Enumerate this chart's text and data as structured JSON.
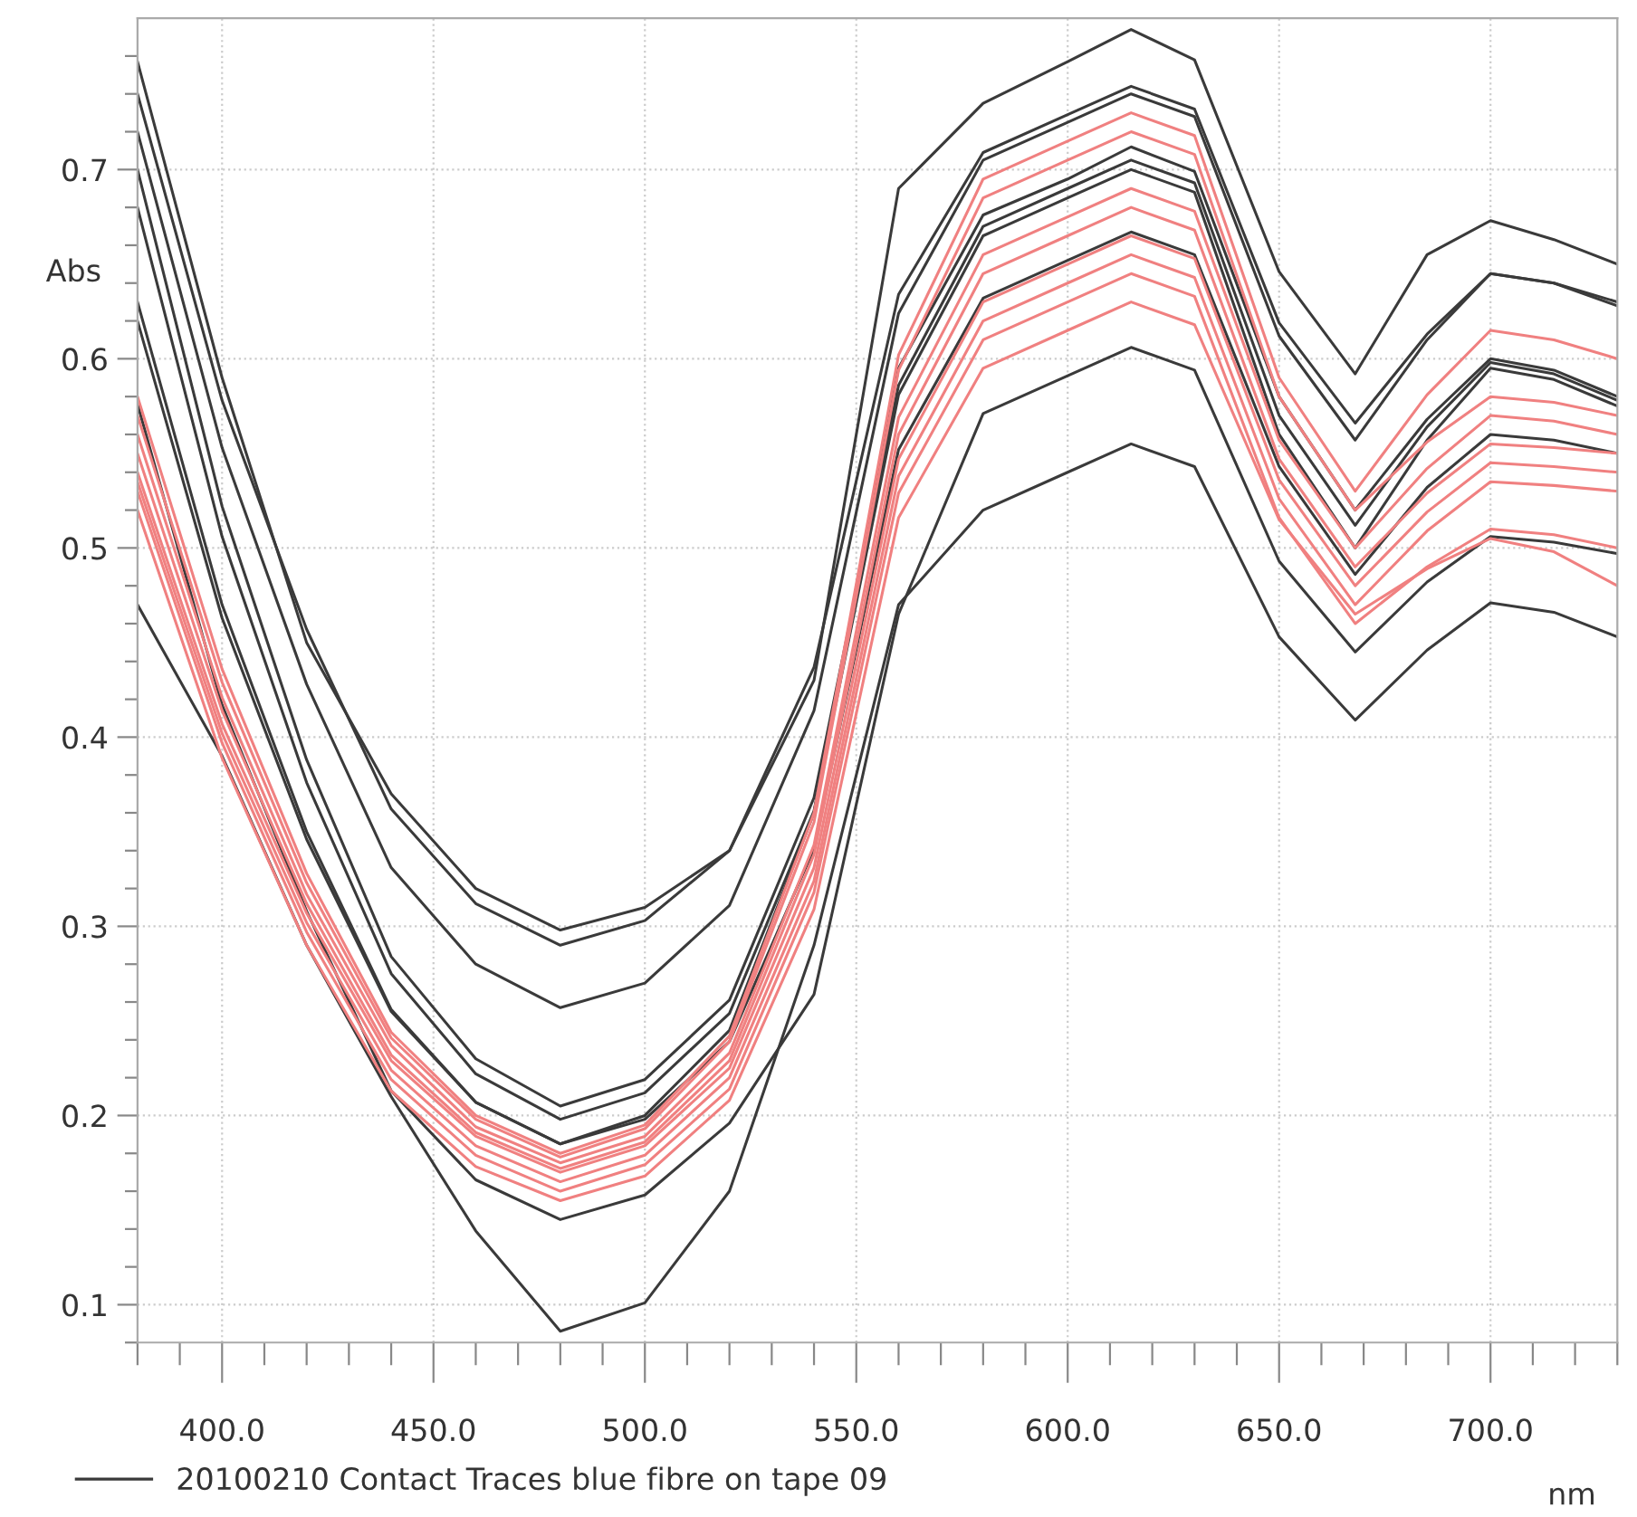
{
  "chart_data": {
    "type": "line",
    "xlabel": "nm",
    "ylabel": "Abs",
    "legend": "bottom left",
    "grid": true,
    "line_style": "solid",
    "marker": "none",
    "x": [
      380,
      400,
      420,
      440,
      460,
      480,
      500,
      520,
      540,
      560,
      580,
      600,
      615,
      630,
      650,
      668,
      685,
      700,
      715,
      730
    ],
    "xlim": [
      380,
      730
    ],
    "ylim": [
      0.08,
      0.78
    ],
    "xticks": [
      {
        "value": 380,
        "label": null
      },
      {
        "value": 390,
        "label": null
      },
      {
        "value": 400,
        "label": "400.0"
      },
      {
        "value": 410,
        "label": null
      },
      {
        "value": 420,
        "label": null
      },
      {
        "value": 430,
        "label": null
      },
      {
        "value": 440,
        "label": null
      },
      {
        "value": 450,
        "label": "450.0"
      },
      {
        "value": 460,
        "label": null
      },
      {
        "value": 470,
        "label": null
      },
      {
        "value": 480,
        "label": null
      },
      {
        "value": 490,
        "label": null
      },
      {
        "value": 500,
        "label": "500.0"
      },
      {
        "value": 510,
        "label": null
      },
      {
        "value": 520,
        "label": null
      },
      {
        "value": 530,
        "label": null
      },
      {
        "value": 540,
        "label": null
      },
      {
        "value": 550,
        "label": "550.0"
      },
      {
        "value": 560,
        "label": null
      },
      {
        "value": 570,
        "label": null
      },
      {
        "value": 580,
        "label": null
      },
      {
        "value": 590,
        "label": null
      },
      {
        "value": 600,
        "label": "600.0"
      },
      {
        "value": 610,
        "label": null
      },
      {
        "value": 620,
        "label": null
      },
      {
        "value": 630,
        "label": null
      },
      {
        "value": 640,
        "label": null
      },
      {
        "value": 650,
        "label": "650.0"
      },
      {
        "value": 660,
        "label": null
      },
      {
        "value": 670,
        "label": null
      },
      {
        "value": 680,
        "label": null
      },
      {
        "value": 690,
        "label": null
      },
      {
        "value": 700,
        "label": "700.0"
      },
      {
        "value": 710,
        "label": null
      },
      {
        "value": 720,
        "label": null
      },
      {
        "value": 730,
        "label": null
      }
    ],
    "yticks": [
      {
        "value": 0.08,
        "label": null
      },
      {
        "value": 0.1,
        "label": "0.1"
      },
      {
        "value": 0.12,
        "label": null
      },
      {
        "value": 0.14,
        "label": null
      },
      {
        "value": 0.16,
        "label": null
      },
      {
        "value": 0.18,
        "label": null
      },
      {
        "value": 0.2,
        "label": "0.2"
      },
      {
        "value": 0.22,
        "label": null
      },
      {
        "value": 0.24,
        "label": null
      },
      {
        "value": 0.26,
        "label": null
      },
      {
        "value": 0.28,
        "label": null
      },
      {
        "value": 0.3,
        "label": "0.3"
      },
      {
        "value": 0.32,
        "label": null
      },
      {
        "value": 0.34,
        "label": null
      },
      {
        "value": 0.36,
        "label": null
      },
      {
        "value": 0.38,
        "label": null
      },
      {
        "value": 0.4,
        "label": "0.4"
      },
      {
        "value": 0.42,
        "label": null
      },
      {
        "value": 0.44,
        "label": null
      },
      {
        "value": 0.46,
        "label": null
      },
      {
        "value": 0.48,
        "label": null
      },
      {
        "value": 0.5,
        "label": "0.5"
      },
      {
        "value": 0.52,
        "label": null
      },
      {
        "value": 0.54,
        "label": null
      },
      {
        "value": 0.56,
        "label": null
      },
      {
        "value": 0.58,
        "label": null
      },
      {
        "value": 0.6,
        "label": "0.6"
      },
      {
        "value": 0.62,
        "label": null
      },
      {
        "value": 0.64,
        "label": null
      },
      {
        "value": 0.66,
        "label": null
      },
      {
        "value": 0.68,
        "label": null
      },
      {
        "value": 0.7,
        "label": "0.7"
      },
      {
        "value": 0.72,
        "label": null
      },
      {
        "value": 0.74,
        "label": null
      },
      {
        "value": 0.76,
        "label": null
      }
    ],
    "series": [
      {
        "name": "20100210 Contact Traces blue fibre on tape 09",
        "color": "#3a3a3a",
        "values": [
          0.757,
          0.59,
          0.45,
          0.37,
          0.32,
          0.298,
          0.31,
          0.34,
          0.43,
          0.69,
          0.735,
          0.757,
          0.774,
          0.758,
          0.646,
          0.592,
          0.655,
          0.673,
          0.663,
          0.65
        ]
      },
      {
        "color": "#3a3a3a",
        "values": [
          0.74,
          0.578,
          0.457,
          0.362,
          0.312,
          0.29,
          0.303,
          0.34,
          0.437,
          0.634,
          0.709,
          0.729,
          0.744,
          0.732,
          0.619,
          0.566,
          0.613,
          0.645,
          0.64,
          0.63
        ]
      },
      {
        "color": "#3a3a3a",
        "values": [
          0.72,
          0.553,
          0.428,
          0.331,
          0.28,
          0.257,
          0.27,
          0.311,
          0.414,
          0.624,
          0.705,
          0.725,
          0.74,
          0.728,
          0.612,
          0.557,
          0.61,
          0.645,
          0.64,
          0.628
        ]
      },
      {
        "color": "#3a3a3a",
        "values": [
          0.7,
          0.522,
          0.388,
          0.284,
          0.23,
          0.205,
          0.219,
          0.261,
          0.368,
          0.586,
          0.67,
          0.69,
          0.705,
          0.693,
          0.57,
          0.512,
          0.564,
          0.598,
          0.592,
          0.578
        ]
      },
      {
        "color": "#3a3a3a",
        "values": [
          0.68,
          0.506,
          0.376,
          0.275,
          0.222,
          0.198,
          0.212,
          0.254,
          0.361,
          0.581,
          0.665,
          0.685,
          0.7,
          0.688,
          0.56,
          0.5,
          0.557,
          0.595,
          0.589,
          0.575
        ]
      },
      {
        "color": "#3a3a3a",
        "values": [
          0.63,
          0.47,
          0.35,
          0.256,
          0.207,
          0.185,
          0.198,
          0.239,
          0.341,
          0.552,
          0.632,
          0.652,
          0.667,
          0.655,
          0.543,
          0.486,
          0.532,
          0.56,
          0.557,
          0.55
        ]
      },
      {
        "color": "#3a3a3a",
        "values": [
          0.62,
          0.463,
          0.346,
          0.255,
          0.207,
          0.185,
          0.2,
          0.245,
          0.36,
          0.595,
          0.676,
          0.695,
          0.712,
          0.699,
          0.58,
          0.52,
          0.568,
          0.6,
          0.594,
          0.58
        ]
      },
      {
        "color": "#3a3a3a",
        "values": [
          0.576,
          0.417,
          0.308,
          0.213,
          0.166,
          0.145,
          0.158,
          0.196,
          0.264,
          0.465,
          0.571,
          0.591,
          0.606,
          0.594,
          0.493,
          0.445,
          0.482,
          0.506,
          0.503,
          0.497
        ]
      },
      {
        "color": "#3a3a3a",
        "values": [
          0.47,
          0.39,
          0.29,
          0.21,
          0.139,
          0.086,
          0.101,
          0.16,
          0.29,
          0.47,
          0.52,
          0.54,
          0.555,
          0.543,
          0.453,
          0.409,
          0.446,
          0.471,
          0.466,
          0.453
        ]
      },
      {
        "color": "#f08080",
        "values": [
          0.58,
          0.436,
          0.328,
          0.244,
          0.2,
          0.18,
          0.195,
          0.242,
          0.36,
          0.602,
          0.695,
          0.715,
          0.73,
          0.718,
          0.59,
          0.53,
          0.581,
          0.615,
          0.61,
          0.6
        ]
      },
      {
        "color": "#f08080",
        "values": [
          0.57,
          0.429,
          0.323,
          0.241,
          0.198,
          0.178,
          0.193,
          0.239,
          0.355,
          0.594,
          0.685,
          0.705,
          0.72,
          0.708,
          0.58,
          0.52,
          0.556,
          0.58,
          0.577,
          0.57
        ]
      },
      {
        "color": "#f08080",
        "values": [
          0.56,
          0.421,
          0.317,
          0.237,
          0.194,
          0.175,
          0.189,
          0.233,
          0.343,
          0.569,
          0.655,
          0.675,
          0.69,
          0.678,
          0.557,
          0.5,
          0.542,
          0.57,
          0.567,
          0.56
        ]
      },
      {
        "color": "#f08080",
        "values": [
          0.55,
          0.414,
          0.312,
          0.232,
          0.191,
          0.172,
          0.186,
          0.229,
          0.338,
          0.56,
          0.645,
          0.665,
          0.68,
          0.668,
          0.547,
          0.49,
          0.529,
          0.555,
          0.553,
          0.55
        ]
      },
      {
        "color": "#f08080",
        "values": [
          0.54,
          0.407,
          0.307,
          0.229,
          0.189,
          0.17,
          0.184,
          0.225,
          0.331,
          0.547,
          0.63,
          0.65,
          0.665,
          0.653,
          0.536,
          0.48,
          0.519,
          0.545,
          0.543,
          0.54
        ]
      },
      {
        "color": "#f08080",
        "values": [
          0.535,
          0.402,
          0.302,
          0.224,
          0.184,
          0.165,
          0.179,
          0.22,
          0.324,
          0.538,
          0.62,
          0.64,
          0.655,
          0.643,
          0.526,
          0.47,
          0.509,
          0.535,
          0.533,
          0.53
        ]
      },
      {
        "color": "#f08080",
        "values": [
          0.53,
          0.397,
          0.297,
          0.219,
          0.179,
          0.16,
          0.174,
          0.214,
          0.318,
          0.529,
          0.61,
          0.63,
          0.645,
          0.633,
          0.516,
          0.46,
          0.49,
          0.51,
          0.507,
          0.5
        ]
      },
      {
        "color": "#f08080",
        "values": [
          0.52,
          0.389,
          0.29,
          0.213,
          0.173,
          0.155,
          0.168,
          0.208,
          0.309,
          0.516,
          0.595,
          0.615,
          0.63,
          0.618,
          0.515,
          0.465,
          0.489,
          0.505,
          0.498,
          0.48
        ]
      }
    ]
  }
}
